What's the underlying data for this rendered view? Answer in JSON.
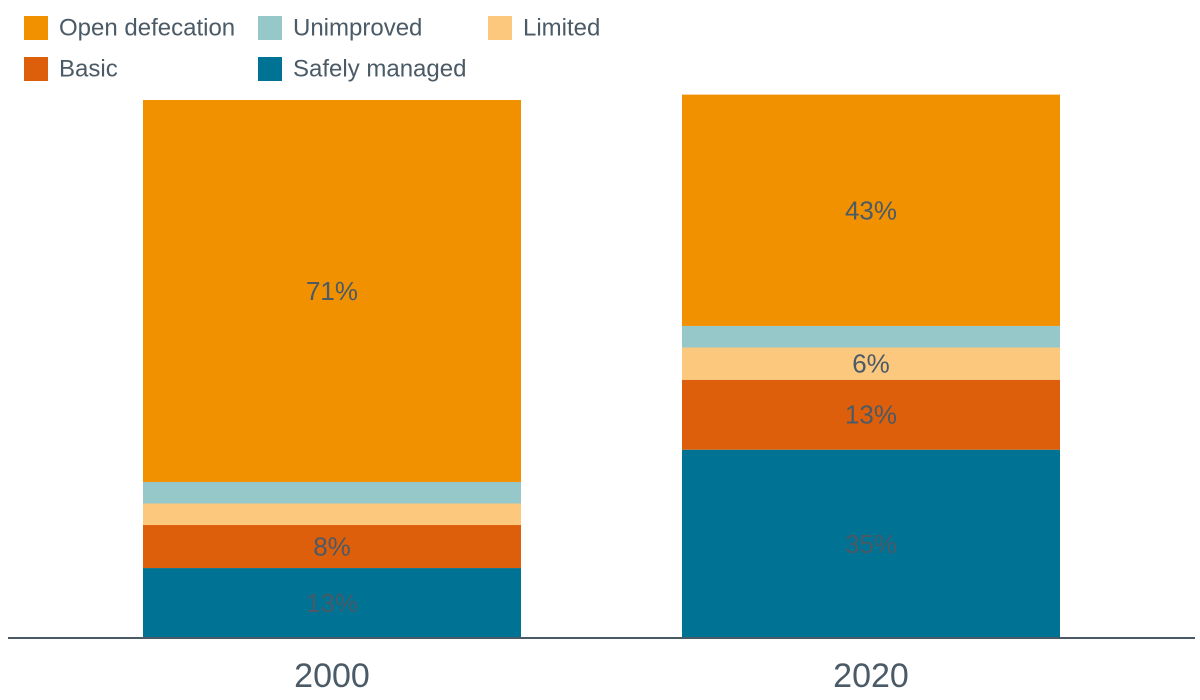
{
  "chart_data": {
    "type": "bar",
    "stacked": true,
    "categories": [
      "2000",
      "2020"
    ],
    "ylim": [
      0,
      100
    ],
    "grid": false,
    "legend_position": "top-left",
    "series": [
      {
        "name": "Safely managed",
        "color": "#007294",
        "values": [
          13,
          35
        ],
        "labels": [
          "13%",
          "35%"
        ]
      },
      {
        "name": "Basic",
        "color": "#de5f0b",
        "values": [
          8,
          13
        ],
        "labels": [
          "8%",
          "13%"
        ]
      },
      {
        "name": "Limited",
        "color": "#fcc87e",
        "values": [
          4,
          6
        ],
        "labels": [
          "",
          "6%"
        ]
      },
      {
        "name": "Unimproved",
        "color": "#96c8ca",
        "values": [
          4,
          4
        ],
        "labels": [
          "",
          ""
        ]
      },
      {
        "name": "Open defecation",
        "color": "#f29100",
        "values": [
          71,
          43
        ],
        "labels": [
          "71%",
          "43%"
        ]
      }
    ],
    "legend_order": [
      "Open defecation",
      "Unimproved",
      "Limited",
      "Basic",
      "Safely managed"
    ]
  }
}
